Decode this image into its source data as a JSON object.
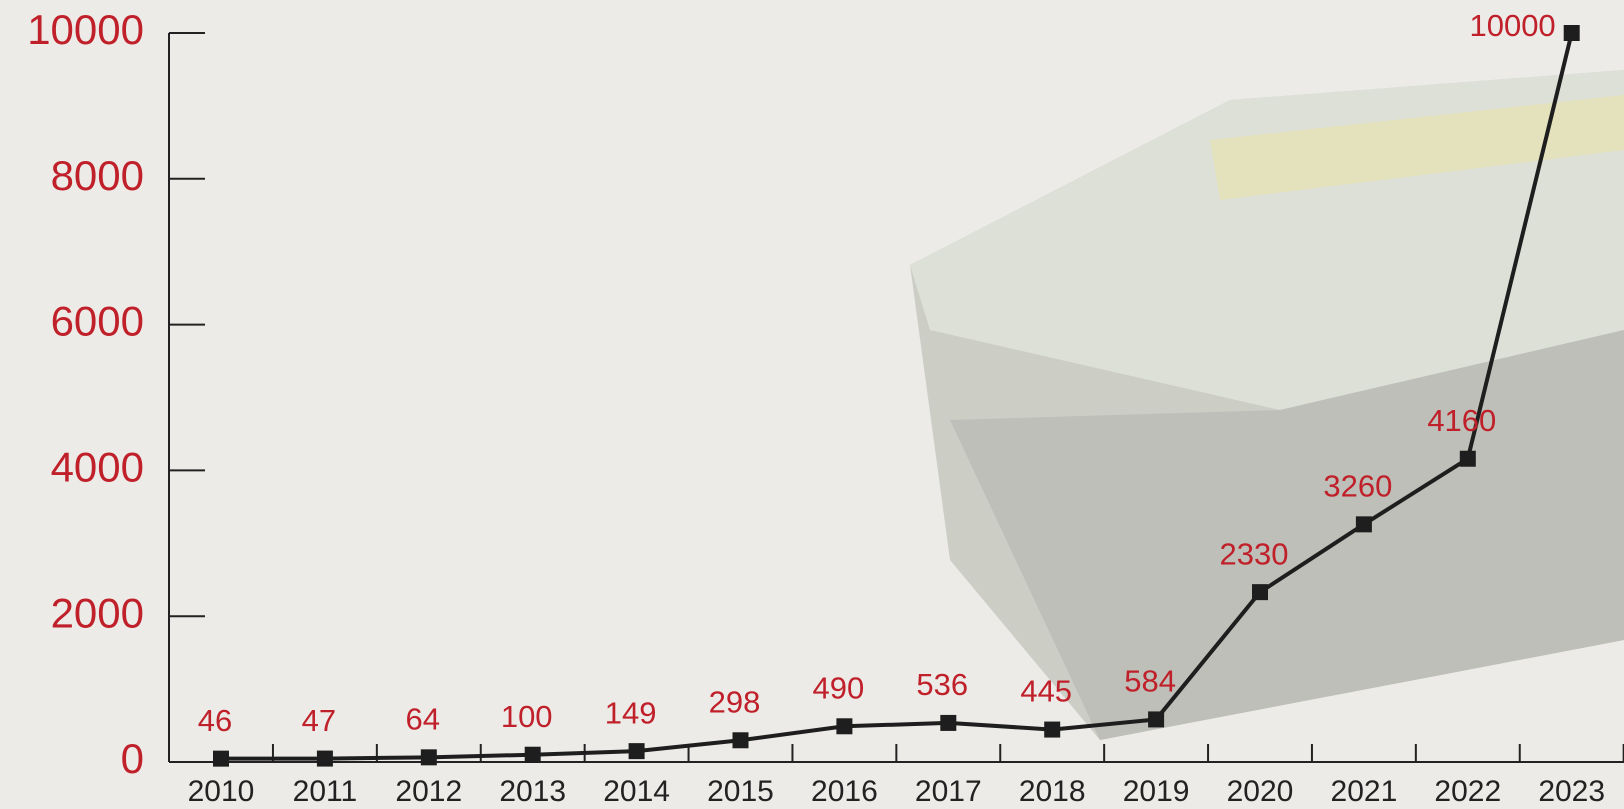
{
  "chart_data": {
    "type": "line",
    "categories": [
      "2010",
      "2011",
      "2012",
      "2013",
      "2014",
      "2015",
      "2016",
      "2017",
      "2018",
      "2019",
      "2020",
      "2021",
      "2022",
      "2023"
    ],
    "series": [
      {
        "color": "#1e1e1e",
        "values": [
          46,
          47,
          64,
          100,
          149,
          298,
          490,
          536,
          445,
          584,
          2330,
          3260,
          4160,
          10000
        ]
      }
    ],
    "ylim": [
      0,
      10000
    ],
    "yticks": [
      0,
      2000,
      4000,
      6000,
      8000,
      10000
    ],
    "label_color": "#c0202a"
  }
}
